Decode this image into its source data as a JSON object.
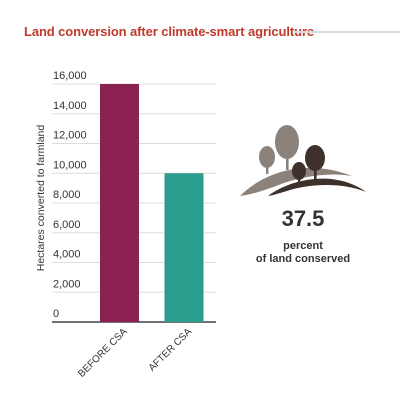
{
  "title": "Land conversion after climate-smart agriculture",
  "chart_data": {
    "type": "bar",
    "categories": [
      "BEFORE CSA",
      "AFTER CSA"
    ],
    "values": [
      16000,
      10000
    ],
    "colors": [
      "#8b2252",
      "#2a9d8f"
    ],
    "ylabel": "Hectares converted to farmland",
    "xlabel": "",
    "ylim": [
      0,
      16000
    ],
    "yticks": [
      "0",
      "2,000",
      "4,000",
      "6,000",
      "8,000",
      "10,000",
      "12,000",
      "14,000",
      "16,000"
    ],
    "grid": true
  },
  "stat": {
    "value": "37.5",
    "label_line1": "percent",
    "label_line2": "of land conserved",
    "icon": "trees-on-hill-icon"
  }
}
